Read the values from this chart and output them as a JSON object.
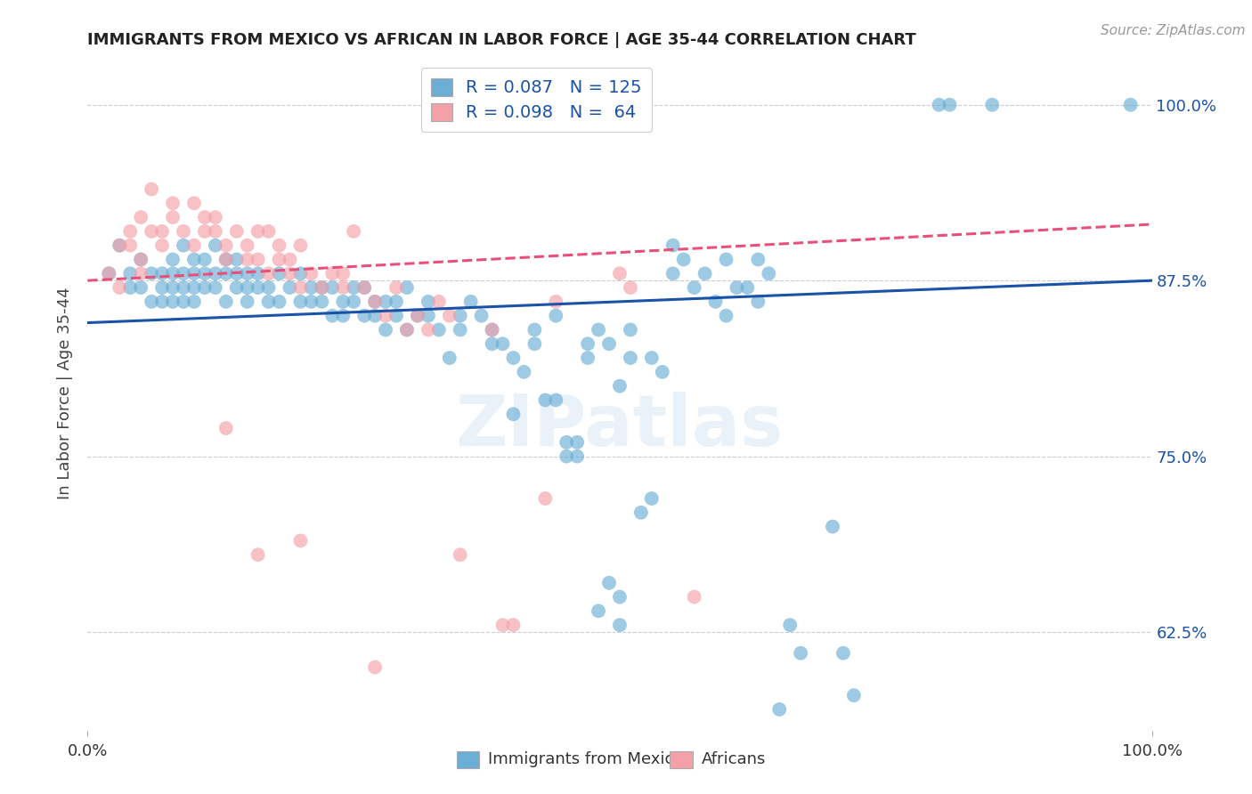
{
  "title": "IMMIGRANTS FROM MEXICO VS AFRICAN IN LABOR FORCE | AGE 35-44 CORRELATION CHART",
  "source": "Source: ZipAtlas.com",
  "ylabel": "In Labor Force | Age 35-44",
  "xlim": [
    0.0,
    1.0
  ],
  "ylim": [
    0.555,
    1.035
  ],
  "ytick_labels": [
    "62.5%",
    "75.0%",
    "87.5%",
    "100.0%"
  ],
  "ytick_values": [
    0.625,
    0.75,
    0.875,
    1.0
  ],
  "xtick_labels": [
    "0.0%",
    "100.0%"
  ],
  "xtick_values": [
    0.0,
    1.0
  ],
  "watermark": "ZIPatlas",
  "blue_color": "#6baed6",
  "pink_color": "#f4a0a8",
  "blue_line_color": "#1a52a8",
  "pink_line_color": "#e8507a",
  "background_color": "#ffffff",
  "title_color": "#222222",
  "right_tick_color": "#1a52a8",
  "blue_scatter": [
    [
      0.02,
      0.88
    ],
    [
      0.03,
      0.9
    ],
    [
      0.04,
      0.88
    ],
    [
      0.04,
      0.87
    ],
    [
      0.05,
      0.89
    ],
    [
      0.05,
      0.87
    ],
    [
      0.06,
      0.88
    ],
    [
      0.06,
      0.86
    ],
    [
      0.07,
      0.88
    ],
    [
      0.07,
      0.87
    ],
    [
      0.07,
      0.86
    ],
    [
      0.08,
      0.89
    ],
    [
      0.08,
      0.88
    ],
    [
      0.08,
      0.87
    ],
    [
      0.08,
      0.86
    ],
    [
      0.09,
      0.9
    ],
    [
      0.09,
      0.88
    ],
    [
      0.09,
      0.87
    ],
    [
      0.09,
      0.86
    ],
    [
      0.1,
      0.89
    ],
    [
      0.1,
      0.88
    ],
    [
      0.1,
      0.87
    ],
    [
      0.1,
      0.86
    ],
    [
      0.11,
      0.89
    ],
    [
      0.11,
      0.88
    ],
    [
      0.11,
      0.87
    ],
    [
      0.12,
      0.9
    ],
    [
      0.12,
      0.88
    ],
    [
      0.12,
      0.87
    ],
    [
      0.13,
      0.89
    ],
    [
      0.13,
      0.88
    ],
    [
      0.13,
      0.86
    ],
    [
      0.14,
      0.89
    ],
    [
      0.14,
      0.88
    ],
    [
      0.14,
      0.87
    ],
    [
      0.15,
      0.88
    ],
    [
      0.15,
      0.87
    ],
    [
      0.15,
      0.86
    ],
    [
      0.16,
      0.88
    ],
    [
      0.16,
      0.87
    ],
    [
      0.17,
      0.87
    ],
    [
      0.17,
      0.86
    ],
    [
      0.18,
      0.88
    ],
    [
      0.18,
      0.86
    ],
    [
      0.19,
      0.87
    ],
    [
      0.2,
      0.88
    ],
    [
      0.2,
      0.86
    ],
    [
      0.21,
      0.87
    ],
    [
      0.21,
      0.86
    ],
    [
      0.22,
      0.87
    ],
    [
      0.22,
      0.86
    ],
    [
      0.23,
      0.87
    ],
    [
      0.23,
      0.85
    ],
    [
      0.24,
      0.86
    ],
    [
      0.24,
      0.85
    ],
    [
      0.25,
      0.87
    ],
    [
      0.25,
      0.86
    ],
    [
      0.26,
      0.87
    ],
    [
      0.26,
      0.85
    ],
    [
      0.27,
      0.86
    ],
    [
      0.27,
      0.85
    ],
    [
      0.28,
      0.86
    ],
    [
      0.28,
      0.84
    ],
    [
      0.29,
      0.86
    ],
    [
      0.29,
      0.85
    ],
    [
      0.3,
      0.87
    ],
    [
      0.3,
      0.84
    ],
    [
      0.31,
      0.85
    ],
    [
      0.32,
      0.86
    ],
    [
      0.32,
      0.85
    ],
    [
      0.33,
      0.84
    ],
    [
      0.34,
      0.82
    ],
    [
      0.35,
      0.85
    ],
    [
      0.35,
      0.84
    ],
    [
      0.36,
      0.86
    ],
    [
      0.37,
      0.85
    ],
    [
      0.38,
      0.84
    ],
    [
      0.38,
      0.83
    ],
    [
      0.39,
      0.83
    ],
    [
      0.4,
      0.82
    ],
    [
      0.4,
      0.78
    ],
    [
      0.41,
      0.81
    ],
    [
      0.42,
      0.84
    ],
    [
      0.42,
      0.83
    ],
    [
      0.43,
      0.79
    ],
    [
      0.44,
      0.85
    ],
    [
      0.44,
      0.79
    ],
    [
      0.45,
      0.76
    ],
    [
      0.45,
      0.75
    ],
    [
      0.46,
      0.76
    ],
    [
      0.46,
      0.75
    ],
    [
      0.47,
      0.83
    ],
    [
      0.47,
      0.82
    ],
    [
      0.48,
      0.84
    ],
    [
      0.48,
      0.64
    ],
    [
      0.49,
      0.83
    ],
    [
      0.49,
      0.66
    ],
    [
      0.5,
      0.8
    ],
    [
      0.5,
      0.65
    ],
    [
      0.5,
      0.63
    ],
    [
      0.51,
      0.84
    ],
    [
      0.51,
      0.82
    ],
    [
      0.52,
      0.71
    ],
    [
      0.53,
      0.82
    ],
    [
      0.53,
      0.72
    ],
    [
      0.54,
      0.81
    ],
    [
      0.55,
      0.9
    ],
    [
      0.55,
      0.88
    ],
    [
      0.56,
      0.89
    ],
    [
      0.57,
      0.87
    ],
    [
      0.58,
      0.88
    ],
    [
      0.59,
      0.86
    ],
    [
      0.6,
      0.89
    ],
    [
      0.6,
      0.85
    ],
    [
      0.61,
      0.87
    ],
    [
      0.62,
      0.87
    ],
    [
      0.63,
      0.89
    ],
    [
      0.63,
      0.86
    ],
    [
      0.64,
      0.88
    ],
    [
      0.65,
      0.57
    ],
    [
      0.66,
      0.63
    ],
    [
      0.67,
      0.61
    ],
    [
      0.7,
      0.7
    ],
    [
      0.71,
      0.61
    ],
    [
      0.72,
      0.58
    ],
    [
      0.8,
      1.0
    ],
    [
      0.81,
      1.0
    ],
    [
      0.85,
      1.0
    ],
    [
      0.98,
      1.0
    ]
  ],
  "pink_scatter": [
    [
      0.02,
      0.88
    ],
    [
      0.03,
      0.9
    ],
    [
      0.03,
      0.87
    ],
    [
      0.04,
      0.91
    ],
    [
      0.04,
      0.9
    ],
    [
      0.05,
      0.92
    ],
    [
      0.05,
      0.89
    ],
    [
      0.05,
      0.88
    ],
    [
      0.06,
      0.94
    ],
    [
      0.06,
      0.91
    ],
    [
      0.07,
      0.91
    ],
    [
      0.07,
      0.9
    ],
    [
      0.08,
      0.93
    ],
    [
      0.08,
      0.92
    ],
    [
      0.09,
      0.91
    ],
    [
      0.1,
      0.93
    ],
    [
      0.1,
      0.9
    ],
    [
      0.11,
      0.92
    ],
    [
      0.11,
      0.91
    ],
    [
      0.12,
      0.92
    ],
    [
      0.12,
      0.91
    ],
    [
      0.13,
      0.9
    ],
    [
      0.13,
      0.89
    ],
    [
      0.14,
      0.91
    ],
    [
      0.15,
      0.9
    ],
    [
      0.15,
      0.89
    ],
    [
      0.16,
      0.91
    ],
    [
      0.16,
      0.89
    ],
    [
      0.17,
      0.91
    ],
    [
      0.17,
      0.88
    ],
    [
      0.18,
      0.9
    ],
    [
      0.18,
      0.89
    ],
    [
      0.19,
      0.89
    ],
    [
      0.19,
      0.88
    ],
    [
      0.2,
      0.9
    ],
    [
      0.2,
      0.87
    ],
    [
      0.21,
      0.88
    ],
    [
      0.22,
      0.87
    ],
    [
      0.23,
      0.88
    ],
    [
      0.24,
      0.88
    ],
    [
      0.24,
      0.87
    ],
    [
      0.25,
      0.91
    ],
    [
      0.26,
      0.87
    ],
    [
      0.27,
      0.86
    ],
    [
      0.28,
      0.85
    ],
    [
      0.29,
      0.87
    ],
    [
      0.3,
      0.84
    ],
    [
      0.31,
      0.85
    ],
    [
      0.32,
      0.84
    ],
    [
      0.33,
      0.86
    ],
    [
      0.34,
      0.85
    ],
    [
      0.35,
      0.68
    ],
    [
      0.38,
      0.84
    ],
    [
      0.39,
      0.63
    ],
    [
      0.4,
      0.63
    ],
    [
      0.43,
      0.72
    ],
    [
      0.44,
      0.86
    ],
    [
      0.5,
      0.88
    ],
    [
      0.51,
      0.87
    ],
    [
      0.57,
      0.65
    ],
    [
      0.13,
      0.77
    ],
    [
      0.16,
      0.68
    ],
    [
      0.2,
      0.69
    ],
    [
      0.27,
      0.6
    ]
  ],
  "blue_line_x": [
    0.0,
    1.0
  ],
  "blue_line_y": [
    0.845,
    0.875
  ],
  "pink_line_x": [
    0.0,
    1.0
  ],
  "pink_line_y": [
    0.875,
    0.915
  ]
}
